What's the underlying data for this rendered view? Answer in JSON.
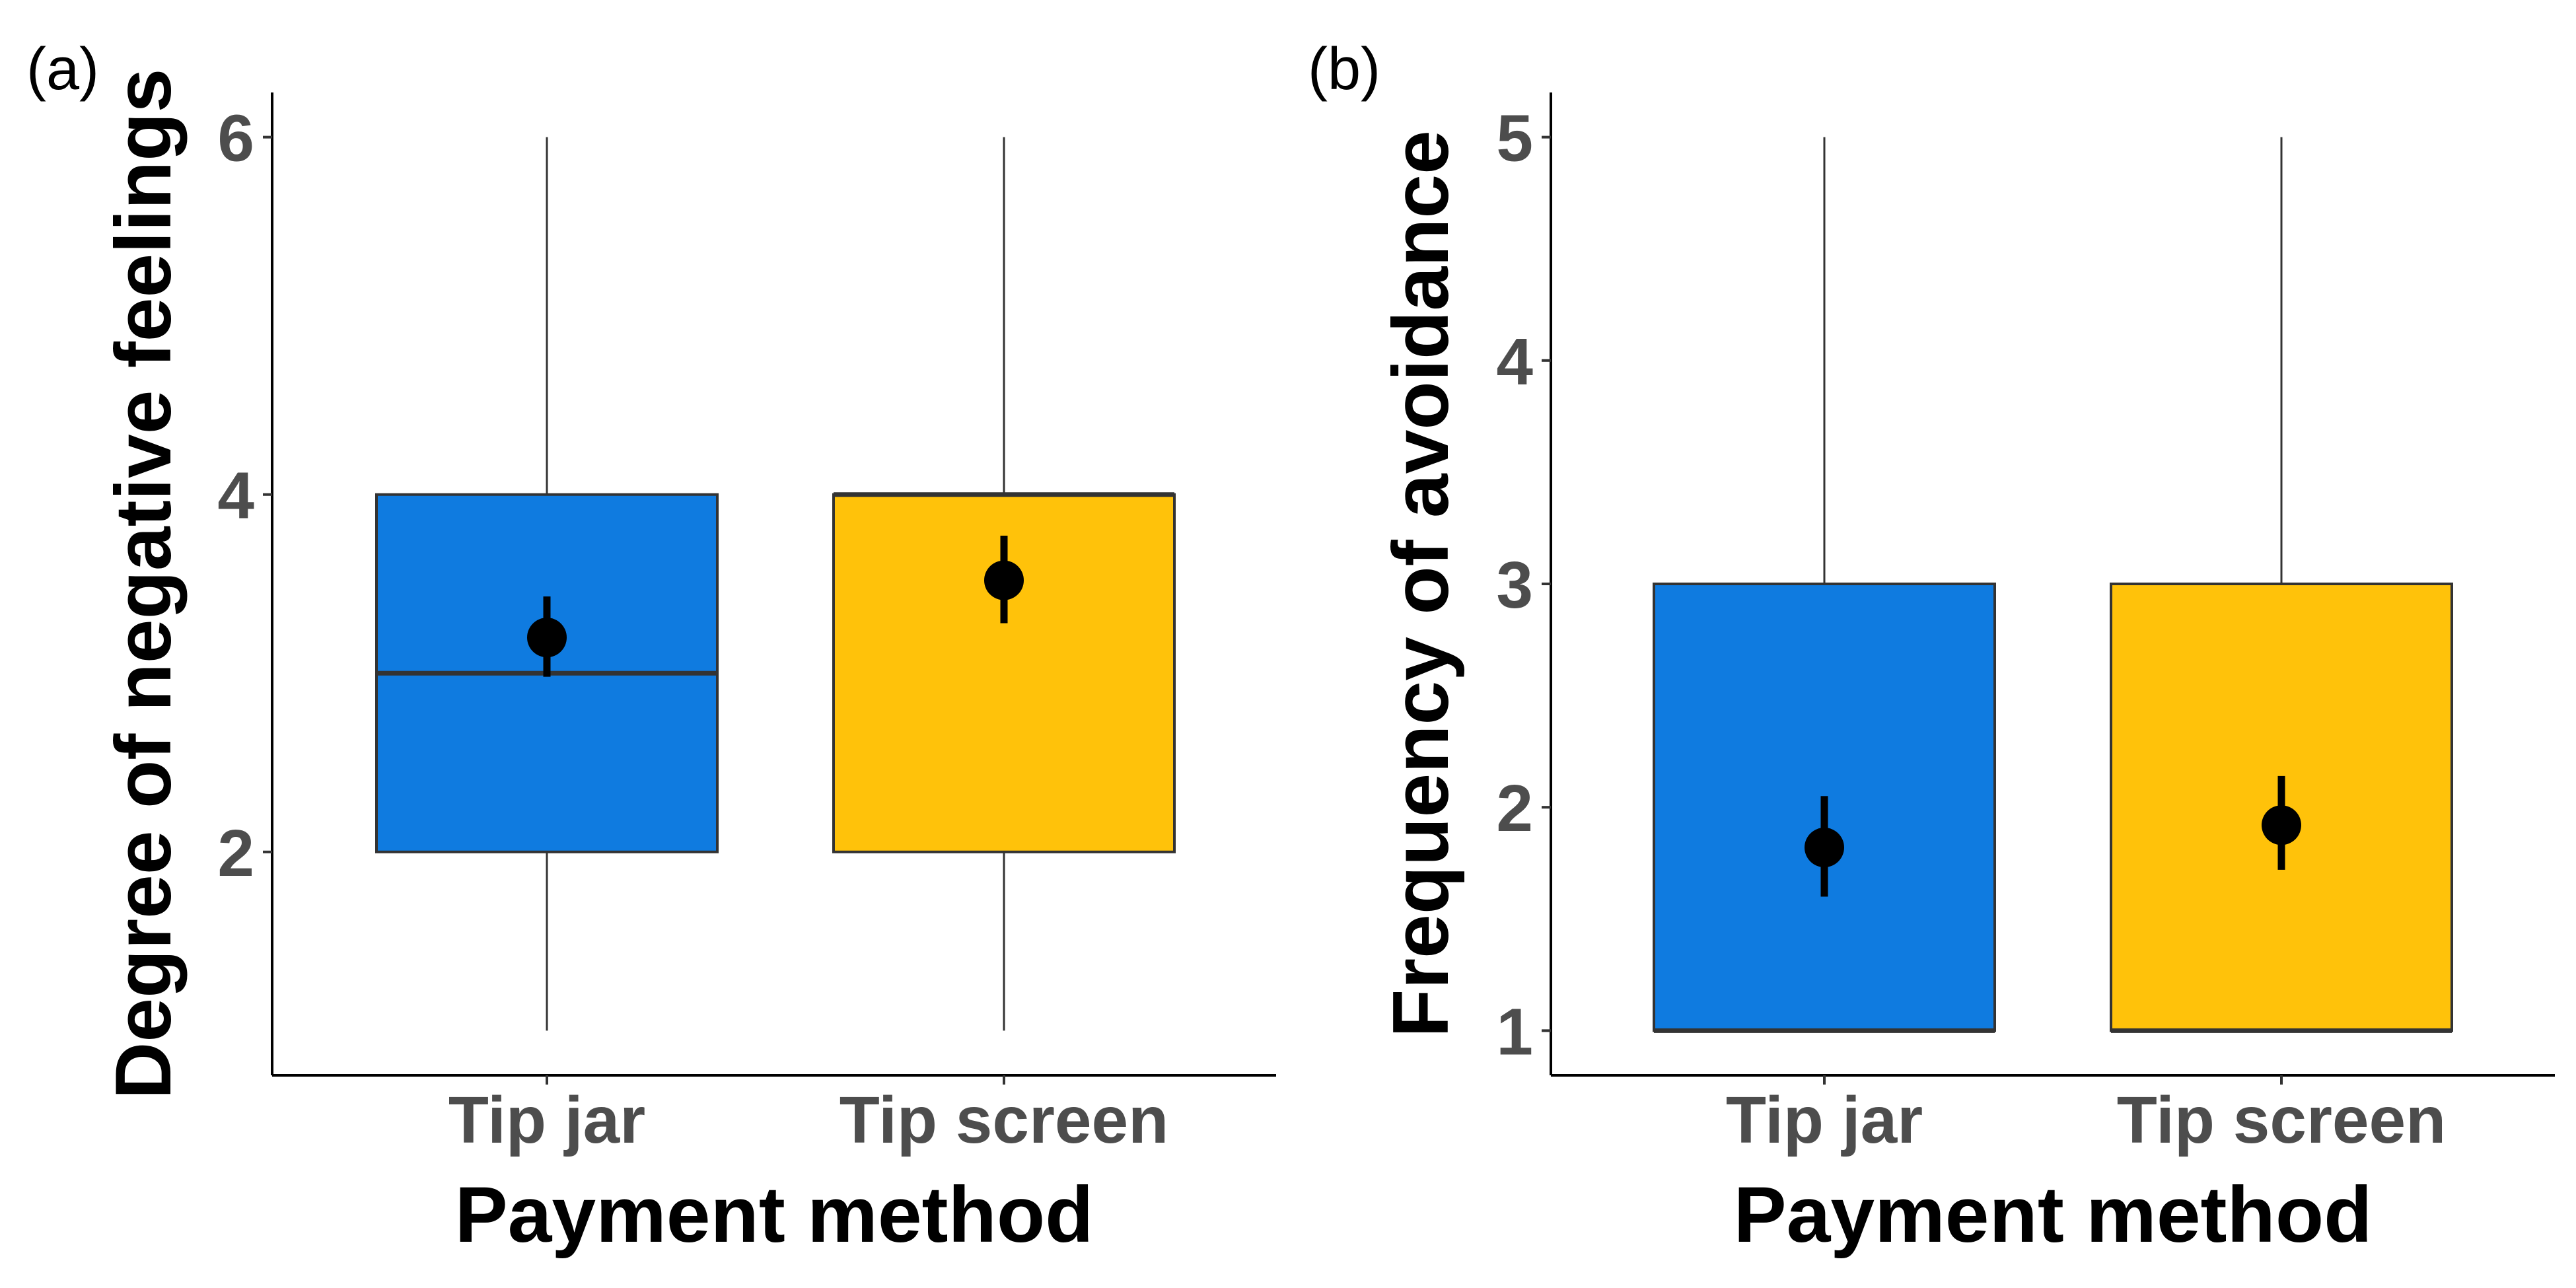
{
  "chart_data": [
    {
      "type": "box",
      "panel_label": "(a)",
      "xlabel": "Payment method",
      "ylabel": "Degree of negative feelings",
      "categories": [
        "Tip jar",
        "Tip screen"
      ],
      "ylim": [
        0.75,
        6.25
      ],
      "yticks": [
        2,
        4,
        6
      ],
      "colors": [
        "#0f7be0",
        "#ffc20a"
      ],
      "grid": false,
      "boxes": [
        {
          "category": "Tip jar",
          "whisker_low": 1,
          "q1": 2,
          "median": 3,
          "q3": 4,
          "whisker_high": 6,
          "mean": 3.2,
          "mean_ci": [
            2.98,
            3.43
          ]
        },
        {
          "category": "Tip screen",
          "whisker_low": 1,
          "q1": 2,
          "median": 4,
          "q3": 4,
          "whisker_high": 6,
          "mean": 3.52,
          "mean_ci": [
            3.28,
            3.77
          ]
        }
      ]
    },
    {
      "type": "box",
      "panel_label": "(b)",
      "xlabel": "Payment method",
      "ylabel": "Frequency of avoidance",
      "categories": [
        "Tip jar",
        "Tip screen"
      ],
      "ylim": [
        0.8,
        5.2
      ],
      "yticks": [
        1,
        2,
        3,
        4,
        5
      ],
      "colors": [
        "#0f7be0",
        "#ffc20a"
      ],
      "grid": false,
      "boxes": [
        {
          "category": "Tip jar",
          "whisker_low": 1,
          "q1": 1,
          "median": 1,
          "q3": 3,
          "whisker_high": 5,
          "mean": 1.82,
          "mean_ci": [
            1.6,
            2.05
          ]
        },
        {
          "category": "Tip screen",
          "whisker_low": 1,
          "q1": 1,
          "median": 1,
          "q3": 3,
          "whisker_high": 5,
          "mean": 1.92,
          "mean_ci": [
            1.72,
            2.14
          ]
        }
      ]
    }
  ]
}
